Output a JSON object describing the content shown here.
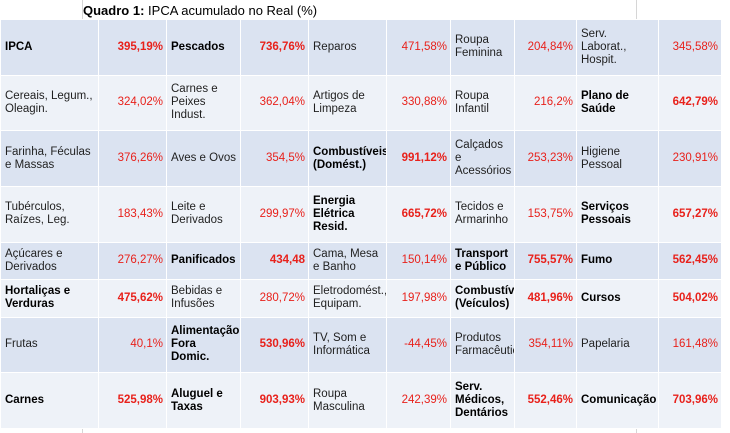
{
  "title": {
    "label": "Quadro 1:",
    "text": "IPCA acumulado no Real (%)"
  },
  "rows": [
    [
      {
        "name": "IPCA",
        "nb": true,
        "value": "395,19%",
        "vb": true
      },
      {
        "name": "Pescados",
        "nb": true,
        "value": "736,76%",
        "vb": true
      },
      {
        "name": "Reparos",
        "nb": false,
        "value": "471,58%",
        "vb": false
      },
      {
        "name": "Roupa Feminina",
        "nb": false,
        "value": "204,84%",
        "vb": false
      },
      {
        "name": "Serv. Laborat., Hospit.",
        "nb": false,
        "value": "345,58%",
        "vb": false
      }
    ],
    [
      {
        "name": "Cereais, Legum., Oleagin.",
        "nb": false,
        "value": "324,02%",
        "vb": false
      },
      {
        "name": "Carnes e Peixes Indust.",
        "nb": false,
        "value": "362,04%",
        "vb": false
      },
      {
        "name": "Artigos de Limpeza",
        "nb": false,
        "value": "330,88%",
        "vb": false
      },
      {
        "name": "Roupa Infantil",
        "nb": false,
        "value": "216,2%",
        "vb": false
      },
      {
        "name": "Plano de Saúde",
        "nb": true,
        "value": "642,79%",
        "vb": true
      }
    ],
    [
      {
        "name": "Farinha, Féculas e Massas",
        "nb": false,
        "value": "376,26%",
        "vb": false
      },
      {
        "name": "Aves e Ovos",
        "nb": false,
        "value": "354,5%",
        "vb": false
      },
      {
        "name": "Combustíveis (Domést.)",
        "nb": true,
        "value": "991,12%",
        "vb": true
      },
      {
        "name": "Calçados e Acessórios",
        "nb": false,
        "value": "253,23%",
        "vb": false
      },
      {
        "name": "Higiene Pessoal",
        "nb": false,
        "value": "230,91%",
        "vb": false
      }
    ],
    [
      {
        "name": "Tubérculos, Raízes, Leg.",
        "nb": false,
        "value": "183,43%",
        "vb": false
      },
      {
        "name": "Leite e Derivados",
        "nb": false,
        "value": "299,97%",
        "vb": false
      },
      {
        "name": "Energia Elétrica Resid.",
        "nb": true,
        "value": "665,72%",
        "vb": true
      },
      {
        "name": "Tecidos e Armarinho",
        "nb": false,
        "value": "153,75%",
        "vb": false
      },
      {
        "name": "Serviços Pessoais",
        "nb": true,
        "value": "657,27%",
        "vb": true
      }
    ],
    [
      {
        "name": "Açúcares e Derivados",
        "nb": false,
        "value": "276,27%",
        "vb": false
      },
      {
        "name": "Panificados",
        "nb": true,
        "value": "434,48",
        "vb": true
      },
      {
        "name": "Cama, Mesa e Banho",
        "nb": false,
        "value": "150,14%",
        "vb": false
      },
      {
        "name": "Transport e Público",
        "nb": true,
        "value": "755,57%",
        "vb": true
      },
      {
        "name": "Fumo",
        "nb": true,
        "value": "562,45%",
        "vb": true
      }
    ],
    [
      {
        "name": "Hortaliças e Verduras",
        "nb": true,
        "value": "475,62%",
        "vb": true
      },
      {
        "name": "Bebidas e Infusões",
        "nb": false,
        "value": "280,72%",
        "vb": false
      },
      {
        "name": "Eletrodomést., Equipam.",
        "nb": false,
        "value": "197,98%",
        "vb": false
      },
      {
        "name": "Combustíveis (Veículos)",
        "nb": true,
        "value": "481,96%",
        "vb": true
      },
      {
        "name": "Cursos",
        "nb": true,
        "value": "504,02%",
        "vb": true
      }
    ],
    [
      {
        "name": "Frutas",
        "nb": false,
        "value": "40,1%",
        "vb": false
      },
      {
        "name": "Alimentação Fora Domic.",
        "nb": true,
        "value": "530,96%",
        "vb": true
      },
      {
        "name": "TV, Som e Informática",
        "nb": false,
        "value": "-44,45%",
        "vb": false
      },
      {
        "name": "Produtos Farmacêuticos",
        "nb": false,
        "value": "354,11%",
        "vb": false
      },
      {
        "name": "Papelaria",
        "nb": false,
        "value": "161,48%",
        "vb": false
      }
    ],
    [
      {
        "name": "Carnes",
        "nb": true,
        "value": "525,98%",
        "vb": true
      },
      {
        "name": "Aluguel e Taxas",
        "nb": true,
        "value": "903,93%",
        "vb": true
      },
      {
        "name": "Roupa Masculina",
        "nb": false,
        "value": "242,39%",
        "vb": false
      },
      {
        "name": "Serv. Médicos, Dentários",
        "nb": true,
        "value": "552,46%",
        "vb": true
      },
      {
        "name": "Comunicação",
        "nb": true,
        "value": "703,96%",
        "vb": true
      }
    ]
  ]
}
